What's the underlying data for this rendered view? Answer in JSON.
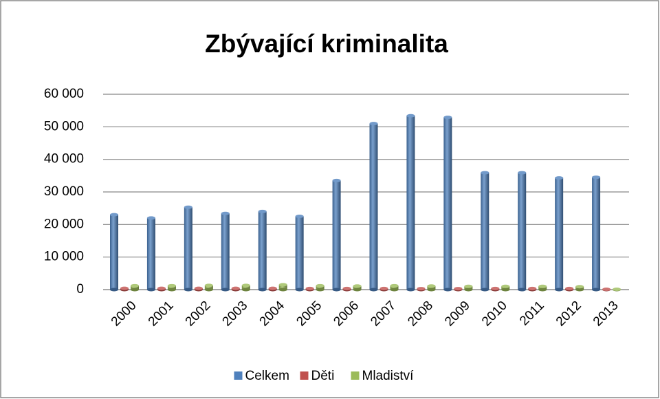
{
  "chart_data": {
    "type": "bar",
    "title": "Zbývající kriminalita",
    "categories": [
      "2000",
      "2001",
      "2002",
      "2003",
      "2004",
      "2005",
      "2006",
      "2007",
      "2008",
      "2009",
      "2010",
      "2011",
      "2012",
      "2013"
    ],
    "series": [
      {
        "name": "Celkem",
        "color": "#4f81bd",
        "values": [
          23000,
          22000,
          25300,
          23400,
          24000,
          22500,
          33500,
          51000,
          53400,
          52900,
          35900,
          35900,
          34300,
          34500
        ]
      },
      {
        "name": "Děti",
        "color": "#c0504d",
        "values": [
          400,
          400,
          400,
          400,
          400,
          350,
          350,
          350,
          300,
          300,
          350,
          350,
          350,
          100
        ]
      },
      {
        "name": "Mladiství",
        "color": "#9bbb59",
        "values": [
          1200,
          1200,
          1300,
          1300,
          1500,
          1200,
          1100,
          1200,
          1100,
          1000,
          1000,
          1000,
          900,
          100
        ]
      }
    ],
    "ylim": [
      0,
      60000
    ],
    "yticks": [
      0,
      {
        "value": 10000,
        "label": "10 000"
      },
      {
        "value": 20000,
        "label": "20 000"
      },
      {
        "value": 30000,
        "label": "30 000"
      },
      {
        "value": 40000,
        "label": "40 000"
      },
      {
        "value": 50000,
        "label": "50 000"
      },
      {
        "value": 60000,
        "label": "60 000"
      }
    ],
    "grid": true,
    "legend": "bottom"
  }
}
